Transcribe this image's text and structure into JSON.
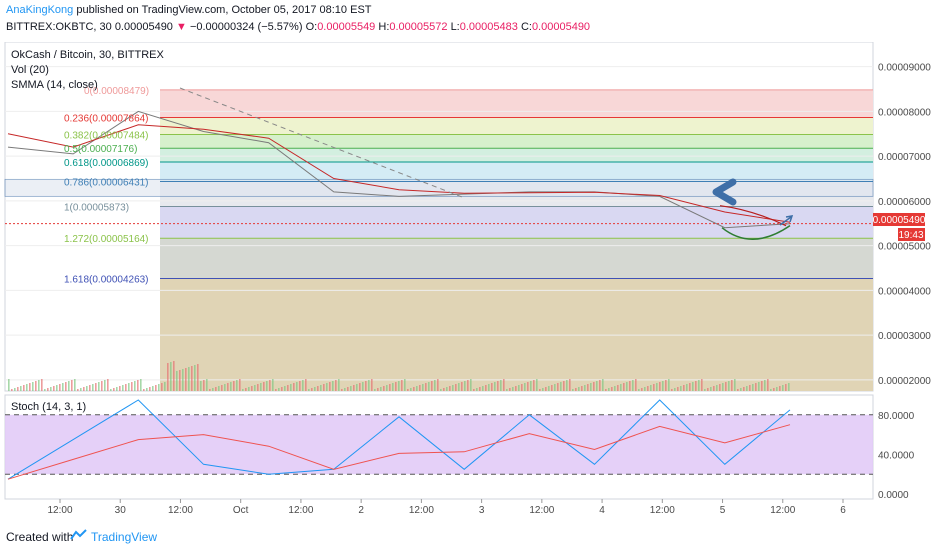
{
  "header": {
    "author": "AnaKingKong",
    "published_text": "published on TradingView.com, October 05, 2017 08:10 EST",
    "symbol_line": "BITTREX:OKBTC, 30",
    "last": "0.00005490",
    "change_arrow": "▼",
    "change": "−0.00000324 (−5.57%)",
    "o_label": "O:",
    "o_value": "0.00005549",
    "h_label": "H:",
    "h_value": "0.00005572",
    "l_label": "L:",
    "l_value": "0.00005483",
    "c_label": "C:",
    "c_value": "0.00005490"
  },
  "legend": {
    "title": "OkCash / Bitcoin, 30, BITTREX",
    "vol": "Vol (20)",
    "smma": "SMMA (14, close)",
    "stoch": "Stoch (14, 3, 1)"
  },
  "price_axis": {
    "ticks": [
      {
        "label": "0.00009000",
        "value": 9e-05
      },
      {
        "label": "0.00008000",
        "value": 8e-05
      },
      {
        "label": "0.00007000",
        "value": 7e-05
      },
      {
        "label": "0.00006000",
        "value": 6e-05
      },
      {
        "label": "0.00005000",
        "value": 5e-05
      },
      {
        "label": "0.00004000",
        "value": 4e-05
      },
      {
        "label": "0.00003000",
        "value": 3e-05
      },
      {
        "label": "0.00002000",
        "value": 2e-05
      }
    ],
    "current_label": "0.00005490",
    "countdown": "19:43"
  },
  "stoch_axis": {
    "ticks": [
      {
        "label": "80.0000",
        "value": 80
      },
      {
        "label": "40.0000",
        "value": 40
      },
      {
        "label": "0.0000",
        "value": 0
      }
    ]
  },
  "time_axis": {
    "ticks": [
      "12:00",
      "30",
      "12:00",
      "Oct",
      "12:00",
      "2",
      "12:00",
      "3",
      "12:00",
      "4",
      "12:00",
      "5",
      "12:00",
      "6"
    ]
  },
  "fib_levels": [
    {
      "ratio": "0",
      "price": "(0.00008479)",
      "value": 8.479e-05,
      "color": "#ef9a9a",
      "fill": "#f8d7d7"
    },
    {
      "ratio": "0.236",
      "price": "(0.00007864)",
      "value": 7.864e-05,
      "color": "#e53935",
      "fill": "#eef3cf"
    },
    {
      "ratio": "0.382",
      "price": "(0.00007484)",
      "value": 7.484e-05,
      "color": "#8bc34a",
      "fill": "#d6f0cc"
    },
    {
      "ratio": "0.5",
      "price": "(0.00007176)",
      "value": 7.176e-05,
      "color": "#4caf50",
      "fill": "#d3efe0"
    },
    {
      "ratio": "0.618",
      "price": "(0.00006869)",
      "value": 6.869e-05,
      "color": "#009688",
      "fill": "#d4ecf5"
    },
    {
      "ratio": "0.786",
      "price": "(0.00006431)",
      "value": 6.431e-05,
      "color": "#3f7fb5",
      "fill": "#e7e9ee"
    },
    {
      "ratio": "1",
      "price": "(0.00005873)",
      "value": 5.873e-05,
      "color": "#78909c",
      "fill": "#d9d8f2"
    },
    {
      "ratio": "1.272",
      "price": "(0.00005164)",
      "value": 5.164e-05,
      "color": "#8bc34a",
      "fill": "#d5d8d2"
    },
    {
      "ratio": "1.618",
      "price": "(0.00004263)",
      "value": 4.263e-05,
      "color": "#3f51b5",
      "fill": "#e0d4b5"
    }
  ],
  "chart_data": {
    "type": "line",
    "title": "OkCash / Bitcoin, 30, BITTREX",
    "x": [
      "12:00",
      "30",
      "12:00",
      "Oct",
      "12:00",
      "2",
      "12:00",
      "3",
      "12:00",
      "4",
      "12:00",
      "5",
      "12:00"
    ],
    "series": [
      {
        "name": "OKBTC",
        "values": [
          7.2e-05,
          7.05e-05,
          8e-05,
          7.55e-05,
          7.3e-05,
          6.2e-05,
          6.1e-05,
          6.15e-05,
          6.2e-05,
          6.2e-05,
          6.1e-05,
          5.4e-05,
          5.49e-05
        ]
      },
      {
        "name": "SMMA (14, close)",
        "values": [
          7.5e-05,
          7.2e-05,
          7.7e-05,
          7.6e-05,
          7.4e-05,
          6.5e-05,
          6.25e-05,
          6.17e-05,
          6.18e-05,
          6.19e-05,
          6.12e-05,
          5.75e-05,
          5.52e-05
        ]
      },
      {
        "name": "Stoch (14, 3, 1)",
        "values": [
          15,
          55,
          95,
          30,
          20,
          25,
          78,
          25,
          80,
          30,
          95,
          30,
          85
        ]
      }
    ],
    "ylim": [
      1.75e-05,
      9.55e-05
    ],
    "stoch_ylim": [
      -5,
      100
    ],
    "stoch_bands": [
      80,
      20
    ]
  }
}
